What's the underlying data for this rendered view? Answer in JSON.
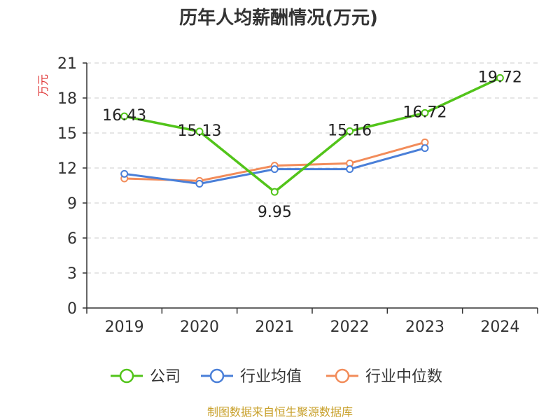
{
  "chart_data": {
    "type": "line",
    "title": "历年人均薪酬情况(万元)",
    "ylabel": "万元",
    "categories": [
      "2019",
      "2020",
      "2021",
      "2022",
      "2023",
      "2024"
    ],
    "ylim": [
      0,
      21
    ],
    "yticks": [
      0,
      3,
      6,
      9,
      12,
      15,
      18,
      21
    ],
    "grid": true,
    "legend_position": "bottom",
    "series": [
      {
        "name": "公司",
        "color": "#52c41a",
        "values": [
          16.43,
          15.13,
          9.95,
          15.16,
          16.72,
          19.72
        ],
        "labels": [
          "16.43",
          "15.13",
          "9.95",
          "15.16",
          "16.72",
          "19.72"
        ]
      },
      {
        "name": "行业均值",
        "color": "#4a7fd8",
        "values": [
          11.5,
          10.65,
          11.9,
          11.9,
          13.7,
          null
        ]
      },
      {
        "name": "行业中位数",
        "color": "#f28c5a",
        "values": [
          11.1,
          10.9,
          12.2,
          12.4,
          14.2,
          null
        ]
      }
    ],
    "source_text": "制图数据来自恒生聚源数据库",
    "colors": {
      "axis": "#333333",
      "grid": "#cccccc",
      "ylabel": "#e03a3a",
      "source": "#c8a02a"
    }
  }
}
